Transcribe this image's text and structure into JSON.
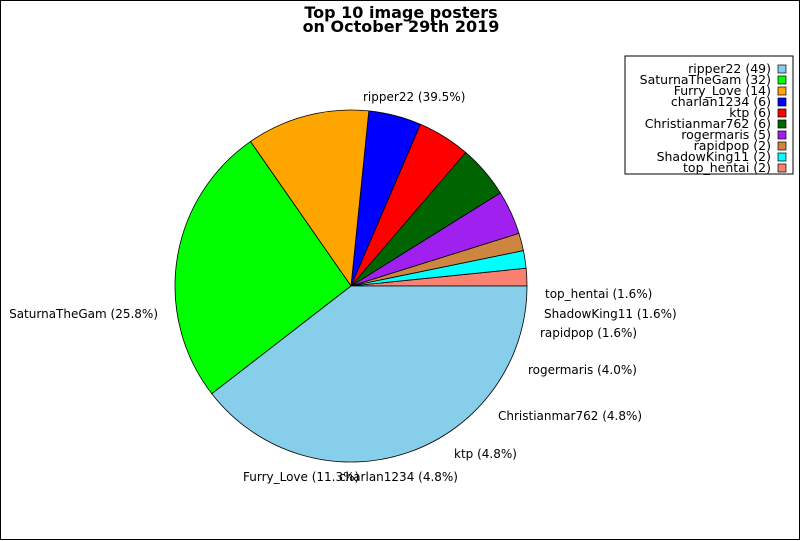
{
  "chart_data": {
    "type": "pie",
    "title": "Top 10 image posters",
    "subtitle": "on October 29th 2019",
    "legend_position": "top-right",
    "slices": [
      {
        "label": "ripper22",
        "value": 49,
        "percent": "39.5%",
        "color": "#87ceeb"
      },
      {
        "label": "SaturnaTheGam",
        "value": 32,
        "percent": "25.8%",
        "color": "#00ff00"
      },
      {
        "label": "Furry_Love",
        "value": 14,
        "percent": "11.3%",
        "color": "#ffa500"
      },
      {
        "label": "charlan1234",
        "value": 6,
        "percent": "4.8%",
        "color": "#0000ff"
      },
      {
        "label": "ktp",
        "value": 6,
        "percent": "4.8%",
        "color": "#ff0000"
      },
      {
        "label": "Christianmar762",
        "value": 6,
        "percent": "4.8%",
        "color": "#006400"
      },
      {
        "label": "rogermaris",
        "value": 5,
        "percent": "4.0%",
        "color": "#a020f0"
      },
      {
        "label": "rapidpop",
        "value": 2,
        "percent": "1.6%",
        "color": "#cd853f"
      },
      {
        "label": "ShadowKing11",
        "value": 2,
        "percent": "1.6%",
        "color": "#00ffff"
      },
      {
        "label": "top_hentai",
        "value": 2,
        "percent": "1.6%",
        "color": "#fa8072"
      }
    ]
  }
}
